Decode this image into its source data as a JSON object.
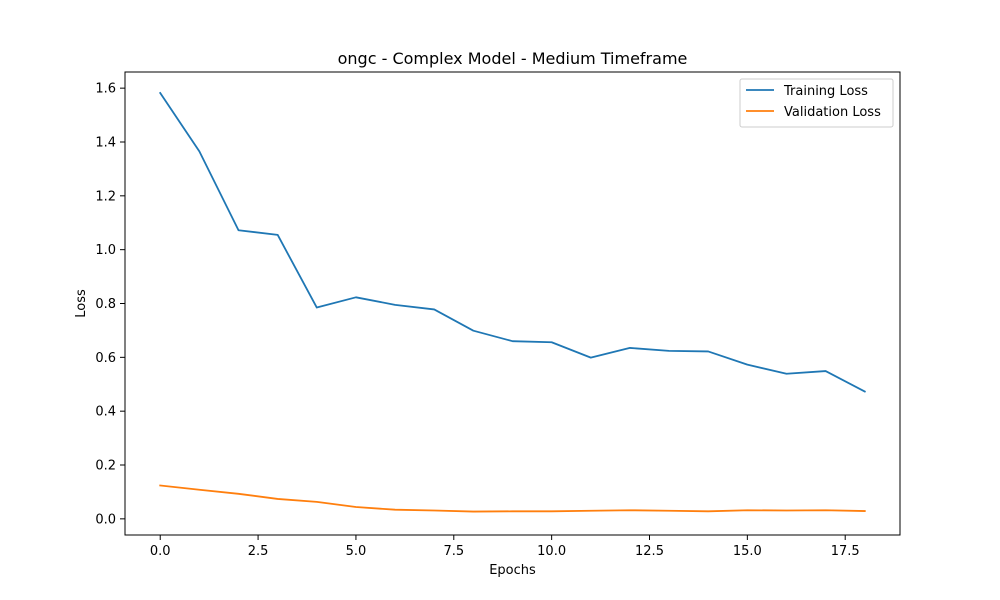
{
  "chart_data": {
    "type": "line",
    "title": "ongc - Complex Model - Medium Timeframe",
    "xlabel": "Epochs",
    "ylabel": "Loss",
    "x": [
      0,
      1,
      2,
      3,
      4,
      5,
      6,
      7,
      8,
      9,
      10,
      11,
      12,
      13,
      14,
      15,
      16,
      17,
      18
    ],
    "xlim": [
      -0.9,
      18.9
    ],
    "ylim": [
      -0.06,
      1.66
    ],
    "xticks": [
      0.0,
      2.5,
      5.0,
      7.5,
      10.0,
      12.5,
      15.0,
      17.5
    ],
    "xtick_labels": [
      "0.0",
      "2.5",
      "5.0",
      "7.5",
      "10.0",
      "12.5",
      "15.0",
      "17.5"
    ],
    "yticks": [
      0.0,
      0.2,
      0.4,
      0.6,
      0.8,
      1.0,
      1.2,
      1.4,
      1.6
    ],
    "ytick_labels": [
      "0.0",
      "0.2",
      "0.4",
      "0.6",
      "0.8",
      "1.0",
      "1.2",
      "1.4",
      "1.6"
    ],
    "grid": false,
    "legend_position": "top-right",
    "series": [
      {
        "name": "Training Loss",
        "color": "#1f77b4",
        "values": [
          1.582,
          1.365,
          1.072,
          1.055,
          0.785,
          0.823,
          0.795,
          0.778,
          0.699,
          0.66,
          0.656,
          0.599,
          0.635,
          0.624,
          0.622,
          0.573,
          0.539,
          0.549,
          0.473
        ]
      },
      {
        "name": "Validation Loss",
        "color": "#ff7f0e",
        "values": [
          0.124,
          0.108,
          0.093,
          0.074,
          0.063,
          0.044,
          0.034,
          0.031,
          0.027,
          0.028,
          0.028,
          0.03,
          0.032,
          0.03,
          0.028,
          0.032,
          0.031,
          0.032,
          0.029
        ]
      }
    ]
  }
}
